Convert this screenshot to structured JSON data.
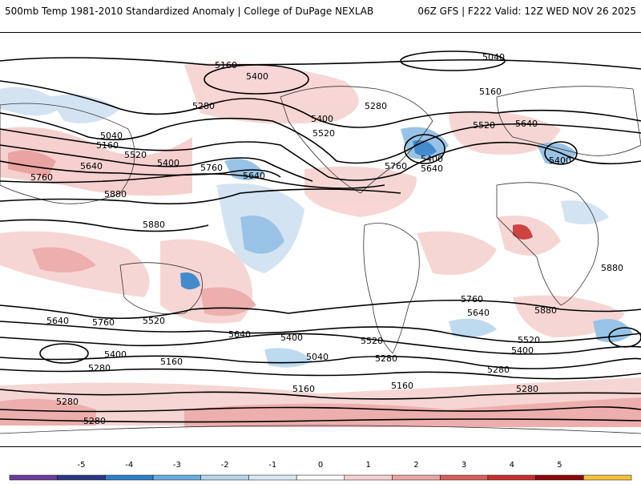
{
  "header": {
    "title_left": "500mb Temp 1981-2010 Standardized Anomaly | College of DuPage NEXLAB",
    "title_right": "06Z GFS | F222 Valid: 12Z WED NOV 26 2025"
  },
  "contour_labels": [
    "5160",
    "5400",
    "5280",
    "5040",
    "5160",
    "5520",
    "5400",
    "5640",
    "5760",
    "5640",
    "5880",
    "5880",
    "5400",
    "5520",
    "5280",
    "5400",
    "5640",
    "5520",
    "5160",
    "5040",
    "5640",
    "5760",
    "5760",
    "5520",
    "5280",
    "5640",
    "5760",
    "5400",
    "5400",
    "5160",
    "5040",
    "5640",
    "5280",
    "5520",
    "5400",
    "5160",
    "5280",
    "5280",
    "5280",
    "5280",
    "5160",
    "5520",
    "5760",
    "5640",
    "5880",
    "5880",
    "5400"
  ],
  "colorbar": {
    "ticks": [
      "-5",
      "-4",
      "-3",
      "-2",
      "-1",
      "0",
      "1",
      "2",
      "3",
      "4",
      "5"
    ],
    "colors": [
      "#6a3d9a",
      "#2b3a82",
      "#2f7fc8",
      "#6aaee0",
      "#b7d6ee",
      "#dce9f5",
      "#ffffff",
      "#f6d2d0",
      "#eba7a5",
      "#d8605c",
      "#c8302e",
      "#8c0a0a",
      "#f6c43a"
    ]
  },
  "colors": {
    "warm_anomaly": "#eaa9a7",
    "cold_anomaly": "#9dc5e8",
    "contour": "#000000",
    "coastline": "#222222"
  }
}
